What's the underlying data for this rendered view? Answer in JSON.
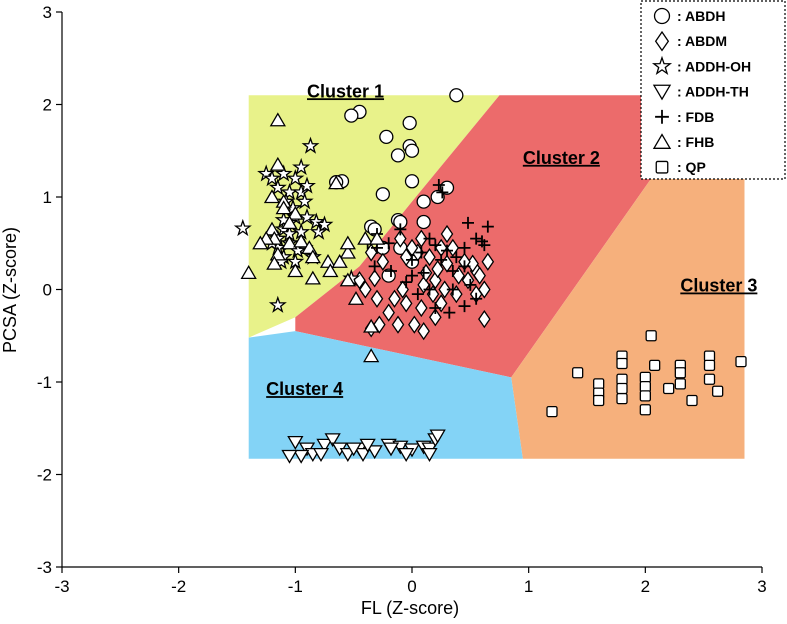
{
  "chart_data": {
    "type": "scatter",
    "xlabel": "FL (Z-score)",
    "ylabel": "PCSA (Z-score)",
    "xlim": [
      -3,
      3
    ],
    "ylim": [
      -3,
      3
    ],
    "x_ticks": [
      "-3",
      "-2",
      "-1",
      "0",
      "1",
      "2",
      "3"
    ],
    "y_ticks": [
      "-3",
      "-2",
      "-1",
      "0",
      "1",
      "2",
      "3"
    ],
    "x_tick_values": [
      -3,
      -2,
      -1,
      0,
      1,
      2,
      3
    ],
    "y_tick_values": [
      -3,
      -2,
      -1,
      0,
      1,
      2,
      3
    ],
    "legend_position": "top-right",
    "legend_separator": ":",
    "colors": {
      "cluster1": "#e8f28a",
      "cluster2": "#ec6b6b",
      "cluster3": "#f6b07c",
      "cluster4": "#83d3f6"
    },
    "clusters": [
      {
        "name": "Cluster 1",
        "color_key": "cluster1",
        "polygon": [
          [
            -1.4,
            2.1
          ],
          [
            0.75,
            2.1
          ],
          [
            0.0,
            0.95
          ],
          [
            -0.45,
            0.25
          ],
          [
            -1.0,
            -0.3
          ],
          [
            -1.4,
            -0.52
          ]
        ],
        "label_at": [
          -0.9,
          2.1
        ]
      },
      {
        "name": "Cluster 2",
        "color_key": "cluster2",
        "polygon": [
          [
            0.75,
            2.1
          ],
          [
            2.05,
            2.1
          ],
          [
            2.05,
            1.2
          ],
          [
            0.85,
            -0.95
          ],
          [
            -1.0,
            -0.45
          ],
          [
            -1.0,
            -0.3
          ],
          [
            -0.45,
            0.25
          ],
          [
            0.0,
            0.95
          ]
        ],
        "label_at": [
          0.95,
          1.38
        ]
      },
      {
        "name": "Cluster 3",
        "color_key": "cluster3",
        "polygon": [
          [
            2.05,
            1.2
          ],
          [
            2.85,
            1.2
          ],
          [
            2.85,
            -1.83
          ],
          [
            0.95,
            -1.83
          ],
          [
            0.85,
            -0.95
          ]
        ],
        "label_at": [
          2.3,
          0.0
        ]
      },
      {
        "name": "Cluster 4",
        "color_key": "cluster4",
        "polygon": [
          [
            -1.4,
            -0.52
          ],
          [
            -1.0,
            -0.45
          ],
          [
            0.85,
            -0.95
          ],
          [
            0.95,
            -1.83
          ],
          [
            -1.4,
            -1.83
          ]
        ],
        "label_at": [
          -1.25,
          -1.12
        ]
      }
    ],
    "series": [
      {
        "name": "ABDH",
        "marker": "circle",
        "points": [
          [
            0.38,
            2.1
          ],
          [
            -0.45,
            1.92
          ],
          [
            -0.52,
            1.88
          ],
          [
            -0.22,
            1.65
          ],
          [
            -0.02,
            1.8
          ],
          [
            -0.12,
            1.45
          ],
          [
            -0.02,
            1.55
          ],
          [
            0.0,
            1.5
          ],
          [
            -0.6,
            1.17
          ],
          [
            -0.65,
            1.16
          ],
          [
            -0.25,
            1.03
          ],
          [
            0.0,
            1.17
          ],
          [
            0.3,
            1.1
          ],
          [
            0.1,
            0.95
          ],
          [
            0.22,
            1.0
          ],
          [
            -0.12,
            0.75
          ],
          [
            -0.1,
            0.73
          ],
          [
            -0.35,
            0.68
          ],
          [
            -0.32,
            0.65
          ],
          [
            0.1,
            0.73
          ],
          [
            -0.25,
            0.45
          ],
          [
            -0.1,
            0.45
          ],
          [
            0.0,
            0.3
          ],
          [
            -0.2,
            0.15
          ]
        ]
      },
      {
        "name": "ABDM",
        "marker": "diamond",
        "points": [
          [
            0.55,
            0.2
          ],
          [
            0.58,
            0.15
          ],
          [
            0.52,
            0.28
          ],
          [
            0.62,
            0.0
          ],
          [
            0.65,
            0.3
          ],
          [
            0.45,
            0.3
          ],
          [
            0.35,
            0.45
          ],
          [
            0.25,
            0.45
          ],
          [
            0.2,
            0.1
          ],
          [
            0.22,
            0.22
          ],
          [
            0.15,
            0.35
          ],
          [
            0.05,
            0.4
          ],
          [
            -0.05,
            0.35
          ],
          [
            -0.08,
            0.0
          ],
          [
            0.1,
            0.05
          ],
          [
            0.18,
            -0.05
          ],
          [
            0.25,
            -0.15
          ],
          [
            0.28,
            0.0
          ],
          [
            0.08,
            -0.2
          ],
          [
            -0.05,
            -0.15
          ],
          [
            -0.15,
            -0.1
          ],
          [
            -0.2,
            -0.25
          ],
          [
            -0.3,
            -0.1
          ],
          [
            -0.4,
            0.0
          ],
          [
            -0.45,
            0.1
          ],
          [
            -0.25,
            0.3
          ],
          [
            -0.1,
            0.55
          ],
          [
            0.0,
            0.45
          ],
          [
            0.08,
            0.55
          ],
          [
            0.3,
            0.6
          ],
          [
            0.62,
            -0.32
          ],
          [
            0.1,
            -0.45
          ],
          [
            -0.28,
            -0.38
          ],
          [
            -0.35,
            -0.42
          ],
          [
            -0.32,
            0.12
          ],
          [
            0.3,
            0.28
          ],
          [
            0.38,
            -0.05
          ],
          [
            0.48,
            0.1
          ],
          [
            0.02,
            -0.38
          ],
          [
            -0.12,
            -0.38
          ],
          [
            0.2,
            -0.3
          ],
          [
            0.12,
            0.18
          ],
          [
            -0.35,
            0.4
          ],
          [
            0.55,
            -0.05
          ],
          [
            0.4,
            0.15
          ]
        ]
      },
      {
        "name": "ADDH-OH",
        "marker": "star",
        "points": [
          [
            -1.45,
            0.66
          ],
          [
            -1.25,
            1.25
          ],
          [
            -1.2,
            1.2
          ],
          [
            -1.15,
            1.1
          ],
          [
            -1.1,
            1.25
          ],
          [
            -1.05,
            1.05
          ],
          [
            -1.0,
            1.2
          ],
          [
            -0.95,
            1.05
          ],
          [
            -0.9,
            1.12
          ],
          [
            -0.95,
            1.32
          ],
          [
            -0.87,
            1.55
          ],
          [
            -1.08,
            0.95
          ],
          [
            -1.02,
            0.88
          ],
          [
            -1.0,
            0.78
          ],
          [
            -1.05,
            0.72
          ],
          [
            -1.1,
            0.65
          ],
          [
            -1.15,
            0.55
          ],
          [
            -1.15,
            0.45
          ],
          [
            -1.1,
            0.35
          ],
          [
            -1.2,
            0.5
          ],
          [
            -1.05,
            0.5
          ],
          [
            -0.95,
            0.62
          ],
          [
            -0.9,
            0.78
          ],
          [
            -0.82,
            0.73
          ],
          [
            -0.8,
            0.62
          ],
          [
            -0.92,
            0.45
          ],
          [
            -0.85,
            0.35
          ],
          [
            -0.98,
            0.42
          ],
          [
            -1.0,
            0.3
          ],
          [
            -1.12,
            0.3
          ],
          [
            -1.05,
            0.6
          ],
          [
            -0.92,
            0.95
          ],
          [
            -1.15,
            -0.17
          ],
          [
            -0.52,
            0.12
          ],
          [
            -0.75,
            0.7
          ],
          [
            -1.1,
            0.75
          ]
        ]
      },
      {
        "name": "ADDH-TH",
        "marker": "triangle-down",
        "points": [
          [
            -1.0,
            -1.65
          ],
          [
            -0.9,
            -1.72
          ],
          [
            -0.85,
            -1.78
          ],
          [
            -0.75,
            -1.68
          ],
          [
            -0.68,
            -1.62
          ],
          [
            -0.62,
            -1.72
          ],
          [
            -0.55,
            -1.78
          ],
          [
            -0.45,
            -1.72
          ],
          [
            -0.42,
            -1.78
          ],
          [
            -0.32,
            -1.75
          ],
          [
            -0.2,
            -1.68
          ],
          [
            -0.1,
            -1.7
          ],
          [
            0.0,
            -1.73
          ],
          [
            0.1,
            -1.7
          ],
          [
            0.15,
            -1.72
          ],
          [
            0.2,
            -1.62
          ],
          [
            0.22,
            -1.58
          ],
          [
            0.15,
            -1.78
          ],
          [
            -0.05,
            -1.78
          ],
          [
            -0.18,
            -1.72
          ],
          [
            -0.38,
            -1.68
          ],
          [
            -0.5,
            -1.72
          ],
          [
            -0.78,
            -1.78
          ],
          [
            -0.95,
            -1.8
          ],
          [
            -1.05,
            -1.8
          ]
        ]
      },
      {
        "name": "FDB",
        "marker": "plus",
        "points": [
          [
            0.23,
            1.13
          ],
          [
            0.26,
            1.05
          ],
          [
            0.48,
            0.72
          ],
          [
            0.65,
            0.68
          ],
          [
            0.6,
            0.52
          ],
          [
            0.45,
            0.45
          ],
          [
            0.55,
            0.55
          ],
          [
            0.62,
            0.48
          ],
          [
            0.45,
            0.25
          ],
          [
            0.35,
            0.2
          ],
          [
            0.38,
            0.35
          ],
          [
            0.3,
            0.42
          ],
          [
            0.2,
            0.48
          ],
          [
            0.15,
            0.55
          ],
          [
            0.08,
            0.4
          ],
          [
            0.0,
            0.32
          ],
          [
            0.0,
            0.15
          ],
          [
            0.1,
            0.18
          ],
          [
            -0.1,
            0.65
          ],
          [
            -0.2,
            0.5
          ],
          [
            -0.3,
            0.45
          ],
          [
            -0.3,
            0.6
          ],
          [
            -0.38,
            0.5
          ],
          [
            -0.32,
            0.25
          ],
          [
            -0.18,
            0.2
          ],
          [
            -0.05,
            0.08
          ],
          [
            0.05,
            -0.05
          ],
          [
            0.15,
            0.0
          ],
          [
            0.2,
            -0.2
          ],
          [
            0.32,
            -0.25
          ],
          [
            0.45,
            -0.18
          ],
          [
            0.35,
            0.0
          ],
          [
            0.55,
            -0.1
          ],
          [
            0.5,
            0.05
          ],
          [
            0.25,
            0.32
          ]
        ]
      },
      {
        "name": "FHB",
        "marker": "triangle-up",
        "points": [
          [
            -1.15,
            1.83
          ],
          [
            -1.15,
            1.35
          ],
          [
            -0.65,
            1.15
          ],
          [
            -1.2,
            1.0
          ],
          [
            -1.1,
            0.95
          ],
          [
            -1.1,
            0.88
          ],
          [
            -1.0,
            0.82
          ],
          [
            -1.2,
            0.65
          ],
          [
            -1.18,
            0.55
          ],
          [
            -1.25,
            0.55
          ],
          [
            -1.05,
            0.5
          ],
          [
            -1.15,
            0.38
          ],
          [
            -1.18,
            0.28
          ],
          [
            -1.4,
            0.18
          ],
          [
            -0.95,
            0.52
          ],
          [
            -0.88,
            0.45
          ],
          [
            -0.85,
            0.35
          ],
          [
            -0.72,
            0.3
          ],
          [
            -0.55,
            0.4
          ],
          [
            -0.55,
            0.5
          ],
          [
            -0.62,
            0.3
          ],
          [
            -0.7,
            0.2
          ],
          [
            -0.85,
            0.12
          ],
          [
            -0.4,
            0.55
          ],
          [
            -0.3,
            0.55
          ],
          [
            -0.55,
            0.1
          ],
          [
            -0.48,
            -0.1
          ],
          [
            -0.35,
            -0.4
          ],
          [
            -0.35,
            -0.72
          ],
          [
            -1.3,
            0.5
          ],
          [
            -1.0,
            0.2
          ],
          [
            -1.05,
            0.72
          ]
        ]
      },
      {
        "name": "QP",
        "marker": "square",
        "points": [
          [
            1.2,
            -1.32
          ],
          [
            1.42,
            -0.9
          ],
          [
            1.6,
            -1.02
          ],
          [
            1.6,
            -1.12
          ],
          [
            1.6,
            -1.2
          ],
          [
            1.8,
            -0.72
          ],
          [
            1.8,
            -0.8
          ],
          [
            1.8,
            -0.97
          ],
          [
            1.8,
            -1.07
          ],
          [
            1.8,
            -1.18
          ],
          [
            2.0,
            -0.95
          ],
          [
            2.0,
            -1.05
          ],
          [
            2.0,
            -1.15
          ],
          [
            2.0,
            -1.3
          ],
          [
            2.05,
            -0.5
          ],
          [
            2.08,
            -0.82
          ],
          [
            2.2,
            -1.07
          ],
          [
            2.3,
            -1.02
          ],
          [
            2.3,
            -0.82
          ],
          [
            2.3,
            -0.9
          ],
          [
            2.4,
            -1.2
          ],
          [
            2.55,
            -0.72
          ],
          [
            2.55,
            -0.82
          ],
          [
            2.55,
            -0.97
          ],
          [
            2.62,
            -1.1
          ],
          [
            2.82,
            -0.78
          ]
        ]
      }
    ]
  }
}
